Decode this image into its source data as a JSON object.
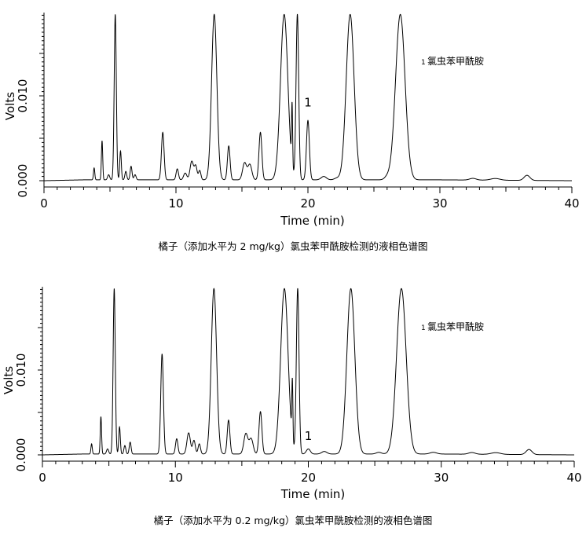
{
  "chart_data": [
    {
      "type": "line",
      "title": "",
      "caption": "橘子（添加水平为 2 mg/kg）氯虫苯甲酰胺检测的液相色谱图",
      "xlabel": "Time (min)",
      "ylabel": "Volts",
      "xlim": [
        0,
        40
      ],
      "ylim": [
        -0.001,
        0.0195
      ],
      "xticks": [
        0,
        10,
        20,
        30,
        40
      ],
      "yticks": [
        0.0,
        0.01
      ],
      "ytick_labels": [
        "0.000",
        "0.010"
      ],
      "legend": {
        "number": "1",
        "label": "氯虫苯甲酰胺"
      },
      "annotations": [
        {
          "text": "1",
          "x": 20.0,
          "y": 0.0082
        }
      ],
      "baseline": [
        [
          0,
          0
        ],
        [
          3,
          0.0001
        ],
        [
          30,
          0.0001
        ],
        [
          40,
          0
        ]
      ],
      "peaks": [
        [
          3.8,
          0.0014,
          0.05
        ],
        [
          4.4,
          0.0046,
          0.05
        ],
        [
          4.9,
          0.0006,
          0.08
        ],
        [
          5.4,
          0.0195,
          0.08
        ],
        [
          5.8,
          0.0034,
          0.06
        ],
        [
          6.2,
          0.001,
          0.07
        ],
        [
          6.6,
          0.0016,
          0.07
        ],
        [
          6.9,
          0.0006,
          0.08
        ],
        [
          9.0,
          0.0056,
          0.1
        ],
        [
          10.1,
          0.0013,
          0.09
        ],
        [
          10.7,
          0.0008,
          0.12
        ],
        [
          11.2,
          0.0022,
          0.13
        ],
        [
          11.5,
          0.0016,
          0.1
        ],
        [
          11.8,
          0.0011,
          0.09
        ],
        [
          12.9,
          0.0195,
          0.2
        ],
        [
          14.0,
          0.004,
          0.1
        ],
        [
          15.2,
          0.002,
          0.15
        ],
        [
          15.6,
          0.0018,
          0.15
        ],
        [
          16.4,
          0.0056,
          0.11
        ],
        [
          18.2,
          0.0195,
          0.28
        ],
        [
          18.8,
          0.0072,
          0.04
        ],
        [
          19.2,
          0.0195,
          0.1
        ],
        [
          20.0,
          0.007,
          0.11
        ],
        [
          21.2,
          0.0004,
          0.2
        ],
        [
          22.2,
          0.0002,
          0.2
        ],
        [
          23.2,
          0.0195,
          0.3
        ],
        [
          26.0,
          0.0003,
          0.2
        ],
        [
          27.0,
          0.0195,
          0.36
        ],
        [
          32.5,
          0.0002,
          0.25
        ],
        [
          34.2,
          0.0002,
          0.35
        ],
        [
          36.6,
          0.0006,
          0.22
        ]
      ]
    },
    {
      "type": "line",
      "title": "",
      "caption": "橘子（添加水平为 0.2 mg/kg）氯虫苯甲酰胺检测的液相色谱图",
      "xlabel": "Time (min)",
      "ylabel": "Volts",
      "xlim": [
        0,
        40
      ],
      "ylim": [
        -0.001,
        0.0195
      ],
      "xticks": [
        0,
        10,
        20,
        30,
        40
      ],
      "yticks": [
        0.0,
        0.01
      ],
      "ytick_labels": [
        "0.000",
        "0.010"
      ],
      "legend": {
        "number": "1",
        "label": "氯虫苯甲酰胺"
      },
      "annotations": [
        {
          "text": "1",
          "x": 20.0,
          "y": 0.0012
        }
      ],
      "baseline": [
        [
          0,
          0
        ],
        [
          3,
          0.0001
        ],
        [
          30,
          0.0001
        ],
        [
          40,
          0
        ]
      ],
      "peaks": [
        [
          3.7,
          0.0012,
          0.05
        ],
        [
          4.4,
          0.0044,
          0.05
        ],
        [
          4.9,
          0.0006,
          0.08
        ],
        [
          5.4,
          0.0195,
          0.08
        ],
        [
          5.8,
          0.0032,
          0.06
        ],
        [
          6.2,
          0.001,
          0.07
        ],
        [
          6.6,
          0.0014,
          0.07
        ],
        [
          9.0,
          0.0118,
          0.1
        ],
        [
          10.1,
          0.0018,
          0.09
        ],
        [
          11.0,
          0.0025,
          0.13
        ],
        [
          11.4,
          0.0016,
          0.1
        ],
        [
          11.8,
          0.0012,
          0.09
        ],
        [
          12.9,
          0.0195,
          0.2
        ],
        [
          14.0,
          0.004,
          0.1
        ],
        [
          15.3,
          0.0024,
          0.15
        ],
        [
          15.7,
          0.0018,
          0.15
        ],
        [
          16.4,
          0.005,
          0.11
        ],
        [
          18.2,
          0.0195,
          0.28
        ],
        [
          18.8,
          0.007,
          0.04
        ],
        [
          19.2,
          0.0195,
          0.1
        ],
        [
          20.0,
          0.0006,
          0.15
        ],
        [
          21.2,
          0.0003,
          0.2
        ],
        [
          23.2,
          0.0195,
          0.3
        ],
        [
          25.3,
          0.0002,
          0.2
        ],
        [
          27.0,
          0.0195,
          0.36
        ],
        [
          29.4,
          0.0002,
          0.25
        ],
        [
          32.3,
          0.0002,
          0.25
        ],
        [
          34.1,
          0.0002,
          0.35
        ],
        [
          36.6,
          0.0006,
          0.22
        ]
      ]
    }
  ]
}
